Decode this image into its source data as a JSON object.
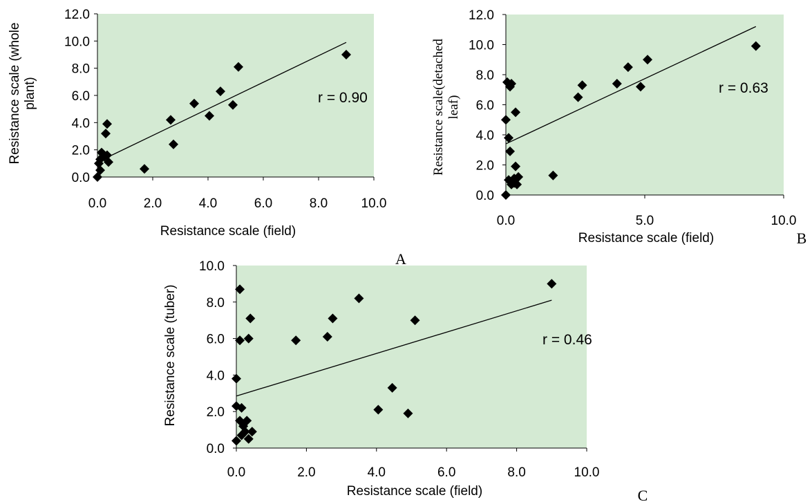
{
  "chart_data": [
    {
      "panel": "A",
      "type": "scatter",
      "xlabel": "Resistance scale (field)",
      "ylabel_lines": [
        "Resistance scale (whole",
        "plant)"
      ],
      "xlim": [
        0,
        10
      ],
      "ylim": [
        0,
        12
      ],
      "xticks": [
        "0.0",
        "2.0",
        "4.0",
        "6.0",
        "8.0",
        "10.0"
      ],
      "yticks": [
        "0.0",
        "2.0",
        "4.0",
        "6.0",
        "8.0",
        "10.0",
        "12.0"
      ],
      "annotation": "r = 0.90",
      "trendline": [
        [
          0.0,
          1.1
        ],
        [
          9.0,
          9.9
        ]
      ],
      "background": "#d4ead3",
      "points": [
        [
          0.0,
          0.0
        ],
        [
          0.05,
          1.0
        ],
        [
          0.1,
          0.5
        ],
        [
          0.1,
          1.3
        ],
        [
          0.15,
          1.8
        ],
        [
          0.2,
          1.7
        ],
        [
          0.25,
          1.5
        ],
        [
          0.3,
          3.2
        ],
        [
          0.35,
          1.6
        ],
        [
          0.35,
          3.9
        ],
        [
          0.4,
          1.1
        ],
        [
          1.7,
          0.6
        ],
        [
          2.65,
          4.2
        ],
        [
          2.75,
          2.4
        ],
        [
          3.5,
          5.4
        ],
        [
          4.05,
          4.5
        ],
        [
          4.45,
          6.3
        ],
        [
          4.9,
          5.3
        ],
        [
          5.1,
          8.1
        ],
        [
          9.0,
          9.0
        ]
      ]
    },
    {
      "panel": "B",
      "type": "scatter",
      "xlabel": "Resistance scale (field)",
      "ylabel_lines": [
        "Resistance scale(detached",
        "leaf)"
      ],
      "xlim": [
        0,
        10
      ],
      "ylim": [
        0,
        12
      ],
      "xticks": [
        "0.0",
        "5.0",
        "10.0"
      ],
      "yticks": [
        "0.0",
        "2.0",
        "4.0",
        "6.0",
        "8.0",
        "10.0",
        "12.0"
      ],
      "annotation": "r = 0.63",
      "trendline": [
        [
          0.0,
          3.4
        ],
        [
          9.0,
          11.2
        ]
      ],
      "background": "#d4ead3",
      "points": [
        [
          0.0,
          0.0
        ],
        [
          0.0,
          5.0
        ],
        [
          0.05,
          7.5
        ],
        [
          0.1,
          3.8
        ],
        [
          0.1,
          1.0
        ],
        [
          0.15,
          2.9
        ],
        [
          0.15,
          7.2
        ],
        [
          0.2,
          7.4
        ],
        [
          0.2,
          0.7
        ],
        [
          0.3,
          1.1
        ],
        [
          0.3,
          0.8
        ],
        [
          0.35,
          5.5
        ],
        [
          0.35,
          1.9
        ],
        [
          0.4,
          0.7
        ],
        [
          0.45,
          1.2
        ],
        [
          1.7,
          1.3
        ],
        [
          2.6,
          6.5
        ],
        [
          2.75,
          7.3
        ],
        [
          4.0,
          7.4
        ],
        [
          4.4,
          8.5
        ],
        [
          4.85,
          7.2
        ],
        [
          5.1,
          9.0
        ],
        [
          9.0,
          9.9
        ]
      ]
    },
    {
      "panel": "C",
      "type": "scatter",
      "xlabel": "Resistance scale (field)",
      "ylabel_lines": [
        "Resistance scale (tuber)"
      ],
      "xlim": [
        0,
        10
      ],
      "ylim": [
        0,
        10
      ],
      "xticks": [
        "0.0",
        "2.0",
        "4.0",
        "6.0",
        "8.0",
        "10.0"
      ],
      "yticks": [
        "0.0",
        "2.0",
        "4.0",
        "6.0",
        "8.0",
        "10.0"
      ],
      "annotation": "r = 0.46",
      "trendline": [
        [
          0.0,
          2.85
        ],
        [
          9.0,
          8.1
        ]
      ],
      "background": "#d4ead3",
      "points": [
        [
          0.0,
          0.4
        ],
        [
          0.0,
          2.3
        ],
        [
          0.0,
          3.8
        ],
        [
          0.1,
          8.7
        ],
        [
          0.1,
          5.9
        ],
        [
          0.1,
          1.5
        ],
        [
          0.15,
          2.2
        ],
        [
          0.15,
          0.7
        ],
        [
          0.2,
          1.2
        ],
        [
          0.25,
          0.9
        ],
        [
          0.3,
          1.5
        ],
        [
          0.35,
          6.0
        ],
        [
          0.35,
          0.5
        ],
        [
          0.4,
          7.1
        ],
        [
          0.45,
          0.9
        ],
        [
          1.7,
          5.9
        ],
        [
          2.6,
          6.1
        ],
        [
          2.75,
          7.1
        ],
        [
          3.5,
          8.2
        ],
        [
          4.05,
          2.1
        ],
        [
          4.45,
          3.3
        ],
        [
          4.9,
          1.9
        ],
        [
          5.1,
          7.0
        ],
        [
          9.0,
          9.0
        ]
      ]
    }
  ]
}
